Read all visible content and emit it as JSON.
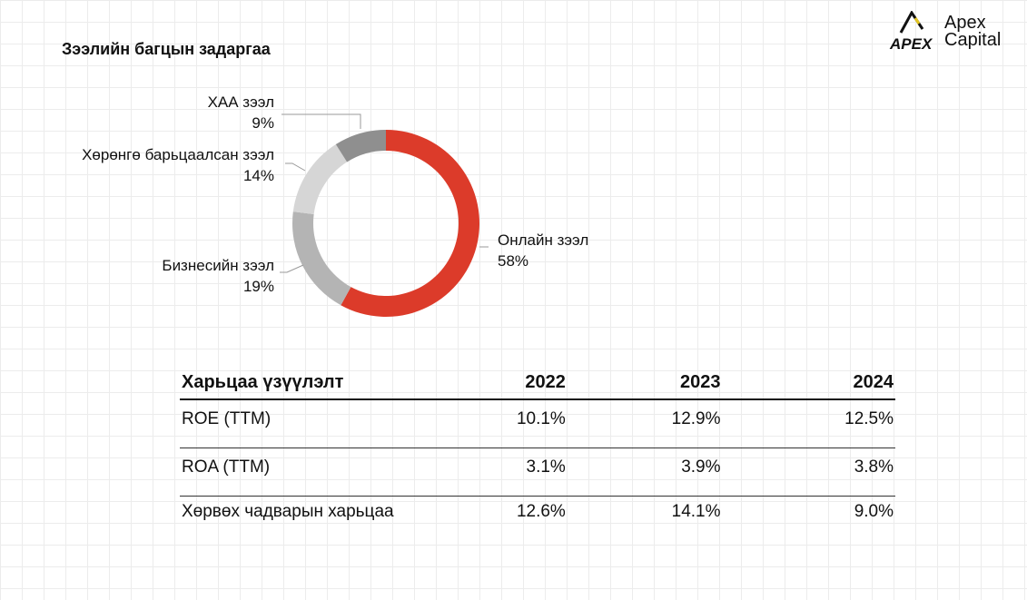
{
  "title": "Зээлийн багцын задаргаа",
  "logo": {
    "line1": "Apex",
    "line2": "Capital",
    "mark_text": "APEX"
  },
  "colors": {
    "accent": "#dc3b2a",
    "gray_dark": "#8f8f8f",
    "gray_mid": "#b4b4b4",
    "gray_light": "#d6d6d6"
  },
  "chart_data": {
    "type": "pie",
    "title": "Зээлийн багцын задаргаа",
    "donut": true,
    "slices": [
      {
        "label": "Онлайн зээл",
        "value": 58,
        "display": "58%",
        "color": "#dc3b2a"
      },
      {
        "label": "Бизнесийн зээл",
        "value": 19,
        "display": "19%",
        "color": "#b4b4b4"
      },
      {
        "label": "Хөрөнгө барьцаалсан зээл",
        "value": 14,
        "display": "14%",
        "color": "#d6d6d6"
      },
      {
        "label": "ХАА зээл",
        "value": 9,
        "display": "9%",
        "color": "#8f8f8f"
      }
    ]
  },
  "table": {
    "headers": [
      "Харьцаа үзүүлэлт",
      "2022",
      "2023",
      "2024"
    ],
    "rows": [
      [
        "ROE (TTM)",
        "10.1%",
        "12.9%",
        "12.5%"
      ],
      [
        "ROA (TTM)",
        "3.1%",
        "3.9%",
        "3.8%"
      ],
      [
        "Хөрвөх чадварын харьцаа",
        "12.6%",
        "14.1%",
        "9.0%"
      ]
    ]
  }
}
